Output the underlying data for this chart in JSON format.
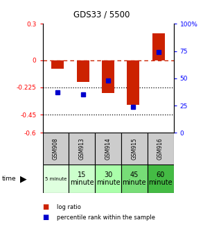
{
  "title": "GDS33 / 5500",
  "samples": [
    "GSM908",
    "GSM913",
    "GSM914",
    "GSM915",
    "GSM916"
  ],
  "log_ratio": [
    -0.07,
    -0.18,
    -0.27,
    -0.37,
    0.22
  ],
  "percentile_rank": [
    37,
    35,
    48,
    24,
    74
  ],
  "ylim_left": [
    -0.6,
    0.3
  ],
  "ylim_right": [
    0,
    100
  ],
  "yticks_left": [
    0.3,
    0.0,
    -0.225,
    -0.45,
    -0.6
  ],
  "ytick_labels_left": [
    "0.3",
    "0",
    "-0.225",
    "-0.45",
    "-0.6"
  ],
  "yticks_right": [
    100,
    75,
    50,
    25,
    0
  ],
  "ytick_labels_right": [
    "100%",
    "75",
    "50",
    "25",
    "0"
  ],
  "bar_color": "#cc2200",
  "dot_color": "#0000cc",
  "dashed_line_color": "#cc2200",
  "dotted_line_color": "#000000",
  "gsm_cell_color": "#cccccc",
  "time_cell_colors": [
    "#dfffdf",
    "#ccffcc",
    "#aaffaa",
    "#77dd77",
    "#44bb44"
  ],
  "time_labels": [
    "5 minute",
    "15\nminute",
    "30\nminute",
    "45\nminute",
    "60\nminute"
  ],
  "time_label_small": [
    true,
    false,
    false,
    false,
    false
  ],
  "legend_bar_label": "log ratio",
  "legend_dot_label": "percentile rank within the sample"
}
